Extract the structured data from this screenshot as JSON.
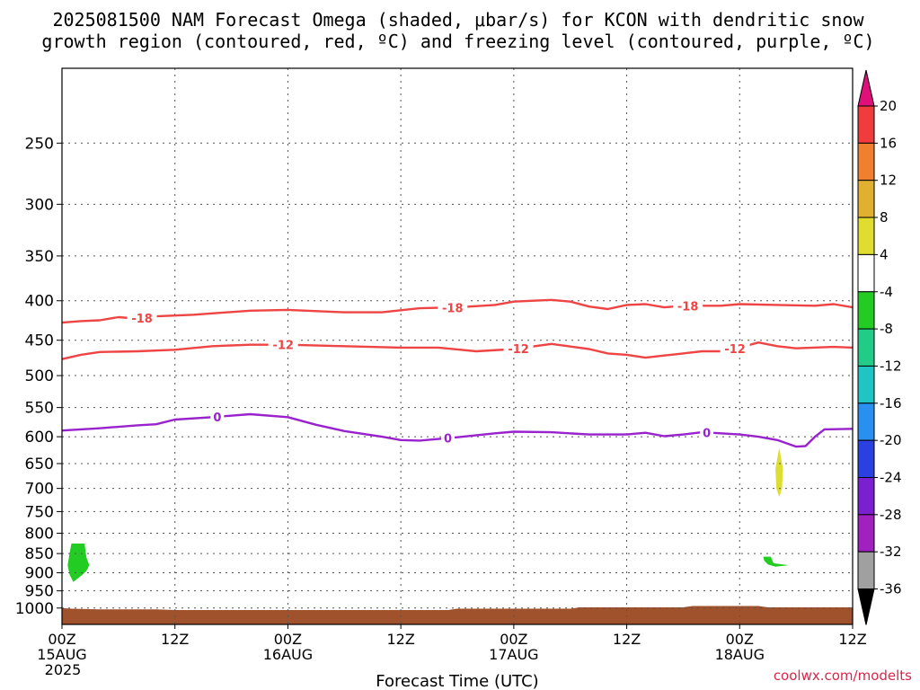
{
  "chart_data": {
    "type": "time-height",
    "title_line1": "2025081500 NAM Forecast Omega (shaded, μbar/s) for KCON with dendritic snow",
    "title_line2": "growth region (contoured, red, ºC) and freezing level (contoured, purple, ºC)",
    "xlabel": "Forecast Time (UTC)",
    "credit": "coolwx.com/modelts",
    "xlim_hours": [
      0,
      84
    ],
    "x_ticks": [
      {
        "hour": 0,
        "line1": "00Z",
        "line2": "15AUG",
        "line3": "2025"
      },
      {
        "hour": 12,
        "line1": "12Z",
        "line2": "",
        "line3": ""
      },
      {
        "hour": 24,
        "line1": "00Z",
        "line2": "16AUG",
        "line3": ""
      },
      {
        "hour": 36,
        "line1": "12Z",
        "line2": "",
        "line3": ""
      },
      {
        "hour": 48,
        "line1": "00Z",
        "line2": "17AUG",
        "line3": ""
      },
      {
        "hour": 60,
        "line1": "12Z",
        "line2": "",
        "line3": ""
      },
      {
        "hour": 72,
        "line1": "00Z",
        "line2": "18AUG",
        "line3": ""
      },
      {
        "hour": 84,
        "line1": "12Z",
        "line2": "",
        "line3": ""
      }
    ],
    "y_axis": {
      "scale": "log-pressure",
      "top_hpa": 200,
      "bottom_hpa": 1050
    },
    "y_ticks": [
      250,
      300,
      350,
      400,
      450,
      500,
      550,
      600,
      650,
      700,
      750,
      800,
      850,
      900,
      950,
      1000
    ],
    "contours": [
      {
        "level": "-18",
        "color": "#ee4444",
        "points": [
          [
            0,
            427
          ],
          [
            2,
            425
          ],
          [
            4,
            424
          ],
          [
            6,
            420
          ],
          [
            8,
            422
          ],
          [
            10,
            419
          ],
          [
            14,
            417
          ],
          [
            20,
            412
          ],
          [
            24,
            411
          ],
          [
            30,
            414
          ],
          [
            34,
            414
          ],
          [
            38,
            409
          ],
          [
            42,
            408
          ],
          [
            46,
            405
          ],
          [
            48,
            401
          ],
          [
            52,
            399
          ],
          [
            54,
            401
          ],
          [
            56,
            407
          ],
          [
            58,
            410
          ],
          [
            60,
            405
          ],
          [
            62,
            404
          ],
          [
            64,
            408
          ],
          [
            66,
            406
          ],
          [
            70,
            406
          ],
          [
            72,
            404
          ],
          [
            76,
            405
          ],
          [
            80,
            406
          ],
          [
            82,
            404
          ],
          [
            84,
            408
          ]
        ],
        "labels": [
          {
            "hour": 8.5,
            "text": "-18"
          },
          {
            "hour": 41.5,
            "text": "-18"
          },
          {
            "hour": 66.5,
            "text": "-18"
          }
        ]
      },
      {
        "level": "-12",
        "color": "#ee4444",
        "points": [
          [
            0,
            476
          ],
          [
            2,
            470
          ],
          [
            4,
            466
          ],
          [
            8,
            465
          ],
          [
            12,
            463
          ],
          [
            16,
            458
          ],
          [
            20,
            456
          ],
          [
            24,
            456
          ],
          [
            30,
            458
          ],
          [
            36,
            460
          ],
          [
            40,
            460
          ],
          [
            44,
            465
          ],
          [
            48,
            462
          ],
          [
            52,
            455
          ],
          [
            56,
            462
          ],
          [
            58,
            468
          ],
          [
            60,
            470
          ],
          [
            62,
            474
          ],
          [
            64,
            471
          ],
          [
            66,
            468
          ],
          [
            68,
            465
          ],
          [
            70,
            465
          ],
          [
            72,
            460
          ],
          [
            74,
            453
          ],
          [
            76,
            458
          ],
          [
            78,
            461
          ],
          [
            82,
            459
          ],
          [
            84,
            460
          ]
        ],
        "labels": [
          {
            "hour": 23.5,
            "text": "-12"
          },
          {
            "hour": 48.5,
            "text": "-12"
          },
          {
            "hour": 71.5,
            "text": "-12"
          }
        ]
      },
      {
        "level": "0",
        "color": "#9922cc",
        "points": [
          [
            0,
            589
          ],
          [
            4,
            585
          ],
          [
            8,
            580
          ],
          [
            10,
            578
          ],
          [
            12,
            570
          ],
          [
            16,
            566
          ],
          [
            20,
            561
          ],
          [
            24,
            566
          ],
          [
            27,
            579
          ],
          [
            30,
            590
          ],
          [
            34,
            600
          ],
          [
            36,
            606
          ],
          [
            38,
            607
          ],
          [
            42,
            601
          ],
          [
            46,
            594
          ],
          [
            48,
            591
          ],
          [
            52,
            592
          ],
          [
            56,
            596
          ],
          [
            60,
            596
          ],
          [
            62,
            593
          ],
          [
            64,
            599
          ],
          [
            66,
            596
          ],
          [
            68,
            592
          ],
          [
            72,
            596
          ],
          [
            74,
            600
          ],
          [
            76,
            606
          ],
          [
            78,
            618
          ],
          [
            79,
            617
          ],
          [
            80,
            600
          ],
          [
            81,
            587
          ],
          [
            84,
            586
          ]
        ],
        "labels": [
          {
            "hour": 16.5,
            "text": "0"
          },
          {
            "hour": 41,
            "text": "0"
          },
          {
            "hour": 68.5,
            "text": "0"
          }
        ]
      }
    ],
    "shaded_features": [
      {
        "name": "omega-patch-green-left",
        "value_range": "-8 to -4",
        "color": "#22cc22",
        "points": [
          [
            1.0,
            825
          ],
          [
            2.4,
            825
          ],
          [
            2.6,
            860
          ],
          [
            2.9,
            880
          ],
          [
            2.6,
            895
          ],
          [
            2.2,
            905
          ],
          [
            1.2,
            925
          ],
          [
            0.8,
            905
          ],
          [
            0.6,
            880
          ],
          [
            0.8,
            850
          ]
        ]
      },
      {
        "name": "omega-patch-green-right",
        "value_range": "-8 to -4",
        "color": "#22cc22",
        "points": [
          [
            74.5,
            858
          ],
          [
            75.3,
            858
          ],
          [
            75.6,
            875
          ],
          [
            77.2,
            880
          ],
          [
            75.8,
            884
          ],
          [
            75.0,
            878
          ],
          [
            74.6,
            868
          ]
        ]
      },
      {
        "name": "omega-patch-yellow",
        "value_range": "4 to 8",
        "color": "#dddd33",
        "points": [
          [
            76.2,
            620
          ],
          [
            76.6,
            660
          ],
          [
            76.5,
            700
          ],
          [
            76.2,
            718
          ],
          [
            75.9,
            700
          ],
          [
            75.8,
            660
          ]
        ]
      }
    ],
    "terrain": {
      "color": "#a0522d",
      "top_points": [
        [
          0,
          1000
        ],
        [
          1,
          1002
        ],
        [
          4,
          1004
        ],
        [
          10,
          1004
        ],
        [
          12,
          1006
        ],
        [
          24,
          1006
        ],
        [
          36,
          1006
        ],
        [
          41,
          1006
        ],
        [
          42,
          1002
        ],
        [
          54,
          1002
        ],
        [
          55,
          998
        ],
        [
          66,
          998
        ],
        [
          67,
          994
        ],
        [
          74,
          994
        ],
        [
          75,
          998
        ],
        [
          84,
          998
        ]
      ]
    },
    "colorbar": {
      "segments": [
        {
          "color": "#f03c3c"
        },
        {
          "color": "#ee8030"
        },
        {
          "color": "#e0b030"
        },
        {
          "color": "#e0dc30"
        },
        {
          "color": "#ffffff"
        },
        {
          "color": "#22cc22"
        },
        {
          "color": "#22cc88"
        },
        {
          "color": "#20c4c4"
        },
        {
          "color": "#2a90f0"
        },
        {
          "color": "#2a40e0"
        },
        {
          "color": "#7a20d0"
        },
        {
          "color": "#a020c0"
        },
        {
          "color": "#a0a0a0"
        }
      ],
      "top_arrow_color": "#e0107a",
      "bottom_arrow_color": "#000000",
      "labels": [
        "20",
        "16",
        "12",
        "8",
        "4",
        "-4",
        "-8",
        "-12",
        "-16",
        "-20",
        "-24",
        "-28",
        "-32",
        "-36"
      ]
    }
  }
}
